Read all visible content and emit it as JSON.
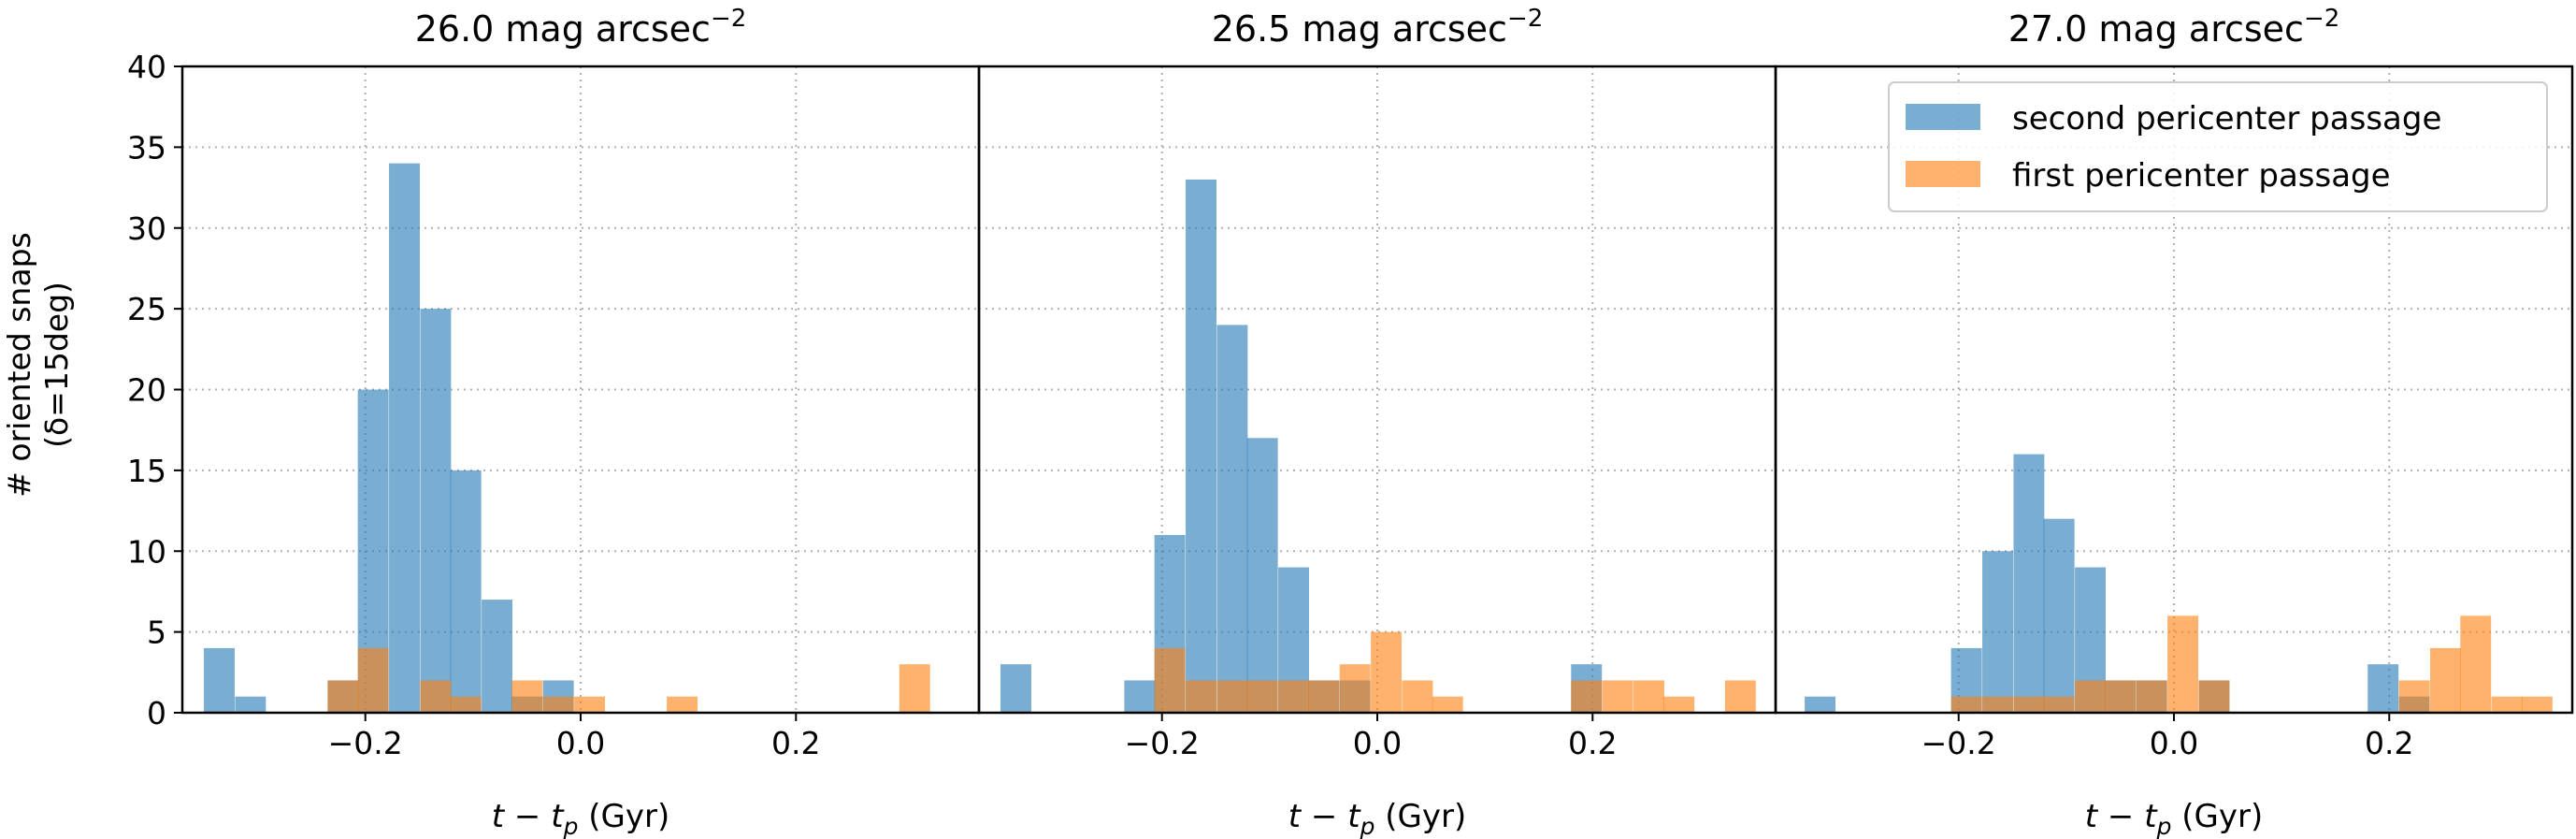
{
  "figure": {
    "ylabel_line1": "# oriented snaps",
    "ylabel_line2": "(δ=15deg)",
    "xlabel_main": "t",
    "xlabel_minus": " − ",
    "xlabel_t": "t",
    "xlabel_sub": "p",
    "xlabel_unit": " (Gyr)",
    "legend": {
      "placement": "upper-right of third panel",
      "entries": [
        {
          "label": "second pericenter passage",
          "series": 0
        },
        {
          "label": "first pericenter passage",
          "series": 1
        }
      ]
    },
    "colors": {
      "second": "#1f77b4",
      "first": "#ff7f0e",
      "overlap": "#a5774c"
    }
  },
  "chart_data": [
    {
      "type": "bar",
      "title": "26.0 mag arcsec",
      "title_sup": "−2",
      "xlabel": "t − t_p (Gyr)",
      "ylabel": "# oriented snaps (δ=15deg)",
      "xlim": [
        -0.37,
        0.37
      ],
      "ylim": [
        0,
        40
      ],
      "xticks": [
        "−0.2",
        "0.0",
        "0.2"
      ],
      "yticks": [
        "0",
        "5",
        "10",
        "15",
        "20",
        "25",
        "30",
        "35",
        "40"
      ],
      "grid": true,
      "bin_width": 0.0286,
      "series": [
        {
          "name": "second pericenter passage",
          "color": "#1f77b4",
          "bins": [
            {
              "x0": -0.35,
              "v": 4
            },
            {
              "x0": -0.321,
              "v": 1
            },
            {
              "x0": -0.235,
              "v": 2
            },
            {
              "x0": -0.207,
              "v": 20
            },
            {
              "x0": -0.178,
              "v": 34
            },
            {
              "x0": -0.149,
              "v": 25
            },
            {
              "x0": -0.121,
              "v": 15
            },
            {
              "x0": -0.092,
              "v": 7
            },
            {
              "x0": -0.064,
              "v": 1
            },
            {
              "x0": -0.035,
              "v": 2
            }
          ]
        },
        {
          "name": "first pericenter passage",
          "color": "#ff7f0e",
          "bins": [
            {
              "x0": -0.235,
              "v": 2
            },
            {
              "x0": -0.207,
              "v": 4
            },
            {
              "x0": -0.149,
              "v": 2
            },
            {
              "x0": -0.121,
              "v": 1
            },
            {
              "x0": -0.064,
              "v": 2
            },
            {
              "x0": -0.035,
              "v": 1
            },
            {
              "x0": -0.006,
              "v": 1
            },
            {
              "x0": 0.08,
              "v": 1
            },
            {
              "x0": 0.296,
              "v": 3
            }
          ]
        }
      ]
    },
    {
      "type": "bar",
      "title": "26.5 mag arcsec",
      "title_sup": "−2",
      "xlabel": "t − t_p (Gyr)",
      "ylabel": "",
      "xlim": [
        -0.37,
        0.37
      ],
      "ylim": [
        0,
        40
      ],
      "xticks": [
        "−0.2",
        "0.0",
        "0.2"
      ],
      "yticks": [],
      "grid": true,
      "bin_width": 0.0286,
      "series": [
        {
          "name": "second pericenter passage",
          "color": "#1f77b4",
          "bins": [
            {
              "x0": -0.35,
              "v": 3
            },
            {
              "x0": -0.235,
              "v": 2
            },
            {
              "x0": -0.207,
              "v": 11
            },
            {
              "x0": -0.178,
              "v": 33
            },
            {
              "x0": -0.149,
              "v": 24
            },
            {
              "x0": -0.121,
              "v": 17
            },
            {
              "x0": -0.092,
              "v": 9
            },
            {
              "x0": -0.064,
              "v": 2
            },
            {
              "x0": -0.035,
              "v": 2
            },
            {
              "x0": 0.18,
              "v": 3
            }
          ]
        },
        {
          "name": "first pericenter passage",
          "color": "#ff7f0e",
          "bins": [
            {
              "x0": -0.207,
              "v": 4
            },
            {
              "x0": -0.178,
              "v": 2
            },
            {
              "x0": -0.149,
              "v": 2
            },
            {
              "x0": -0.121,
              "v": 2
            },
            {
              "x0": -0.092,
              "v": 2
            },
            {
              "x0": -0.064,
              "v": 2
            },
            {
              "x0": -0.035,
              "v": 3
            },
            {
              "x0": -0.006,
              "v": 5
            },
            {
              "x0": 0.023,
              "v": 2
            },
            {
              "x0": 0.051,
              "v": 1
            },
            {
              "x0": 0.18,
              "v": 2
            },
            {
              "x0": 0.209,
              "v": 2
            },
            {
              "x0": 0.238,
              "v": 2
            },
            {
              "x0": 0.266,
              "v": 1
            },
            {
              "x0": 0.323,
              "v": 2
            }
          ]
        }
      ]
    },
    {
      "type": "bar",
      "title": "27.0 mag arcsec",
      "title_sup": "−2",
      "xlabel": "t − t_p (Gyr)",
      "ylabel": "",
      "xlim": [
        -0.37,
        0.37
      ],
      "ylim": [
        0,
        40
      ],
      "xticks": [
        "−0.2",
        "0.0",
        "0.2"
      ],
      "yticks": [],
      "grid": true,
      "bin_width": 0.0286,
      "series": [
        {
          "name": "second pericenter passage",
          "color": "#1f77b4",
          "bins": [
            {
              "x0": -0.343,
              "v": 1
            },
            {
              "x0": -0.207,
              "v": 4
            },
            {
              "x0": -0.178,
              "v": 10
            },
            {
              "x0": -0.149,
              "v": 16
            },
            {
              "x0": -0.121,
              "v": 12
            },
            {
              "x0": -0.092,
              "v": 9
            },
            {
              "x0": -0.064,
              "v": 2
            },
            {
              "x0": -0.035,
              "v": 2
            },
            {
              "x0": 0.023,
              "v": 2
            },
            {
              "x0": 0.18,
              "v": 3
            },
            {
              "x0": 0.209,
              "v": 1
            }
          ]
        },
        {
          "name": "first pericenter passage",
          "color": "#ff7f0e",
          "bins": [
            {
              "x0": -0.207,
              "v": 1
            },
            {
              "x0": -0.178,
              "v": 1
            },
            {
              "x0": -0.149,
              "v": 1
            },
            {
              "x0": -0.121,
              "v": 1
            },
            {
              "x0": -0.092,
              "v": 2
            },
            {
              "x0": -0.064,
              "v": 2
            },
            {
              "x0": -0.035,
              "v": 2
            },
            {
              "x0": -0.006,
              "v": 6
            },
            {
              "x0": 0.023,
              "v": 2
            },
            {
              "x0": 0.209,
              "v": 2
            },
            {
              "x0": 0.238,
              "v": 4
            },
            {
              "x0": 0.266,
              "v": 6
            },
            {
              "x0": 0.295,
              "v": 1
            },
            {
              "x0": 0.323,
              "v": 1
            }
          ]
        }
      ]
    }
  ]
}
